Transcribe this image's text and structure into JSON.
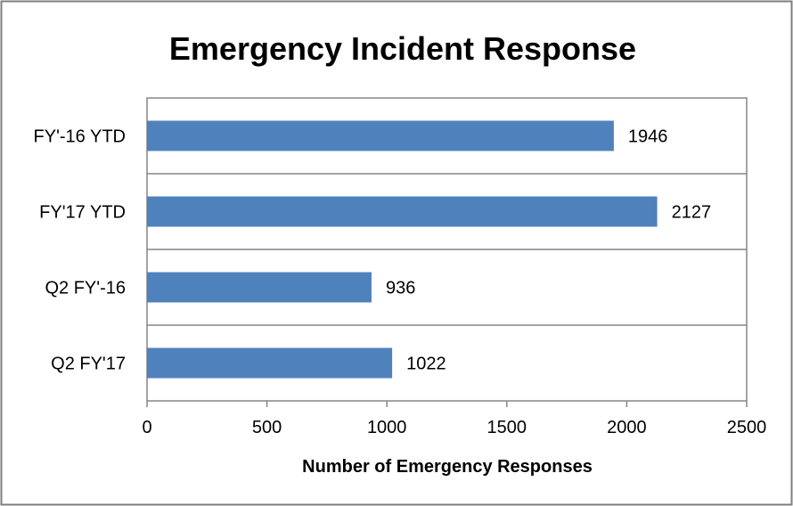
{
  "chart_data": {
    "type": "bar",
    "orientation": "horizontal",
    "title": "Emergency Incident Response",
    "xlabel": "Number of Emergency Responses",
    "ylabel": "",
    "categories": [
      "FY'-16 YTD",
      "FY'17 YTD",
      "Q2 FY'-16",
      "Q2 FY'17"
    ],
    "values": [
      1946,
      2127,
      936,
      1022
    ],
    "data_labels": [
      "1946",
      "2127",
      "936",
      "1022"
    ],
    "xlim": [
      0,
      2500
    ],
    "xticks": [
      0,
      500,
      1000,
      1500,
      2000,
      2500
    ],
    "xtick_labels": [
      "0",
      "500",
      "1000",
      "1500",
      "2000",
      "2500"
    ],
    "grid": "horizontal separators between categories",
    "legend": "none",
    "colors": {
      "bar": "#4F81BD",
      "border": "#7f7f7f",
      "grid": "#868686"
    }
  }
}
